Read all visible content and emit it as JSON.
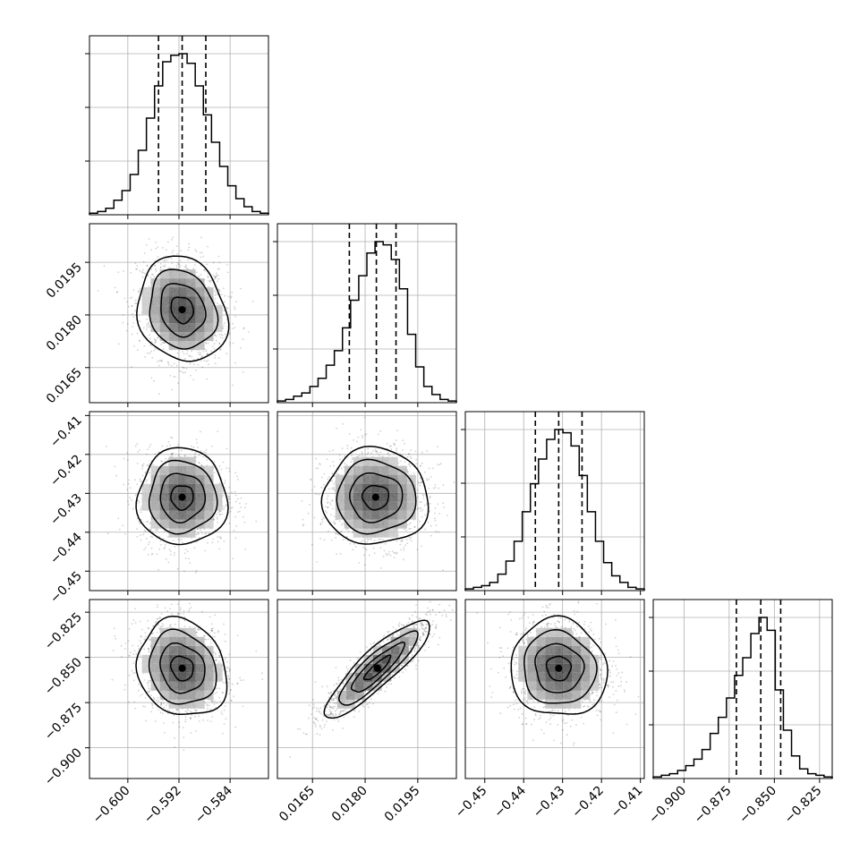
{
  "figure": {
    "background": "#ffffff",
    "grid_color": "#b0b0b0",
    "line_color": "#000000",
    "fill_color": "#000000"
  },
  "chart_data": {
    "type": "corner",
    "parameters": [
      {
        "range": [
          -0.606,
          -0.578
        ],
        "ticks": [
          -0.6,
          -0.592,
          -0.584
        ],
        "tick_labels": [
          "−0.600",
          "−0.592",
          "−0.584"
        ],
        "quantiles": [
          -0.5952,
          -0.5915,
          -0.5878
        ],
        "hist": [
          1,
          2,
          4,
          9,
          15,
          25,
          40,
          60,
          80,
          95,
          99,
          100,
          94,
          80,
          62,
          45,
          30,
          18,
          10,
          5,
          2,
          1
        ]
      },
      {
        "range": [
          0.0155,
          0.0206
        ],
        "ticks": [
          0.0165,
          0.018,
          0.0195
        ],
        "tick_labels": [
          "0.0165",
          "0.0180",
          "0.0195"
        ],
        "quantiles": [
          0.01755,
          0.01832,
          0.01888
        ],
        "hist": [
          1,
          2,
          4,
          6,
          10,
          15,
          23,
          32,
          46,
          63,
          78,
          92,
          99,
          97,
          88,
          70,
          42,
          22,
          10,
          5,
          2,
          1
        ]
      },
      {
        "range": [
          -0.455,
          -0.409
        ],
        "ticks": [
          -0.45,
          -0.44,
          -0.43,
          -0.42,
          -0.41
        ],
        "tick_labels": [
          "−0.45",
          "−0.44",
          "−0.43",
          "−0.42",
          "−0.41"
        ],
        "quantiles": [
          -0.437,
          -0.431,
          -0.425
        ],
        "hist": [
          1,
          2,
          3,
          5,
          10,
          18,
          30,
          48,
          65,
          80,
          92,
          98,
          96,
          88,
          70,
          48,
          30,
          17,
          9,
          5,
          2,
          1
        ]
      },
      {
        "range": [
          -0.917,
          -0.818
        ],
        "ticks": [
          -0.9,
          -0.875,
          -0.85,
          -0.825
        ],
        "tick_labels": [
          "−0.900",
          "−0.875",
          "−0.850",
          "−0.825"
        ],
        "quantiles": [
          -0.871,
          -0.8575,
          -0.8465
        ],
        "hist": [
          1,
          2,
          3,
          5,
          8,
          12,
          18,
          28,
          38,
          50,
          64,
          75,
          90,
          100,
          92,
          55,
          30,
          14,
          6,
          3,
          2,
          1
        ]
      }
    ],
    "y_tick_labels_rows": [
      [],
      [
        "0.0165",
        "0.0180",
        "0.0195"
      ],
      [
        "−0.45",
        "−0.44",
        "−0.43",
        "−0.42",
        "−0.41"
      ],
      [
        "−0.900",
        "−0.875",
        "−0.850",
        "−0.825"
      ]
    ],
    "pairs": [
      {
        "row": 1,
        "col": 0,
        "center": [
          -0.5915,
          0.01815
        ],
        "sd": [
          0.0035,
          0.00075
        ],
        "rho": -0.15
      },
      {
        "row": 2,
        "col": 0,
        "center": [
          -0.5915,
          -0.431
        ],
        "sd": [
          0.0035,
          0.0062
        ],
        "rho": 0.0
      },
      {
        "row": 2,
        "col": 1,
        "center": [
          0.0183,
          -0.431
        ],
        "sd": [
          0.00075,
          0.0062
        ],
        "rho": 0.0
      },
      {
        "row": 3,
        "col": 0,
        "center": [
          -0.5915,
          -0.856
        ],
        "sd": [
          0.0035,
          0.0135
        ],
        "rho": -0.15
      },
      {
        "row": 3,
        "col": 1,
        "center": [
          0.01835,
          -0.856
        ],
        "sd": [
          0.00075,
          0.0135
        ],
        "rho": 0.88
      },
      {
        "row": 3,
        "col": 2,
        "center": [
          -0.431,
          -0.856
        ],
        "sd": [
          0.0062,
          0.0135
        ],
        "rho": -0.05
      }
    ],
    "contour_levels_sigma": [
      0.5,
      1.0,
      1.5,
      2.0
    ],
    "grid": true,
    "legend": "none"
  }
}
